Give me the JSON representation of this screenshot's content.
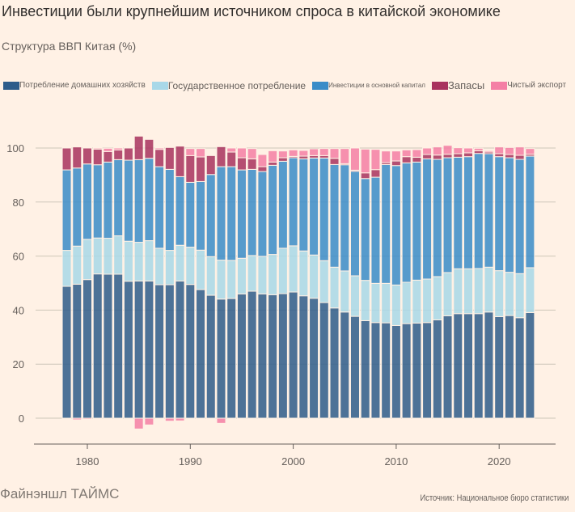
{
  "title": "Инвестиции были крупнейшим источником спроса в китайской экономике",
  "subtitle": "Структура ВВП Китая (%)",
  "footer": {
    "brand": "Файнэншл ТАЙМС",
    "source": "Источник: Национальное бюро статистики"
  },
  "chart_data": {
    "type": "bar",
    "stacked": true,
    "title": "Инвестиции были крупнейшим источником спроса в китайской экономике",
    "subtitle": "Структура ВВП Китая (%)",
    "xlabel": "",
    "ylabel": "",
    "ylim": [
      -10,
      100
    ],
    "yticks": [
      0,
      20,
      40,
      60,
      80,
      100
    ],
    "xticks": [
      1980,
      1990,
      2000,
      2010,
      2020
    ],
    "grid": true,
    "legend_position": "top-left",
    "categories": [
      1978,
      1979,
      1980,
      1981,
      1982,
      1983,
      1984,
      1985,
      1986,
      1987,
      1988,
      1989,
      1990,
      1991,
      1992,
      1993,
      1994,
      1995,
      1996,
      1997,
      1998,
      1999,
      2000,
      2001,
      2002,
      2003,
      2004,
      2005,
      2006,
      2007,
      2008,
      2009,
      2010,
      2011,
      2012,
      2013,
      2014,
      2015,
      2016,
      2017,
      2018,
      2019,
      2020,
      2021,
      2022,
      2023
    ],
    "series": [
      {
        "name": "Потребление домашних хозяйств",
        "color": "#2e5c8a",
        "values": [
          48.8,
          49.6,
          51.3,
          53.4,
          53.3,
          53.3,
          50.7,
          50.8,
          50.8,
          49.4,
          49.4,
          50.8,
          49.5,
          47.6,
          45.5,
          44.1,
          44.3,
          46.0,
          47.0,
          46.0,
          45.7,
          46.1,
          46.7,
          45.3,
          44.4,
          42.8,
          40.8,
          39.3,
          37.7,
          36.1,
          35.4,
          35.3,
          34.3,
          35.0,
          35.2,
          35.4,
          36.4,
          37.9,
          38.7,
          38.7,
          38.7,
          39.3,
          37.6,
          38.0,
          37.2,
          39.1
        ]
      },
      {
        "name": "Государственное потребление",
        "color": "#a8d8e8",
        "values": [
          13.3,
          14.1,
          14.9,
          13.3,
          13.3,
          14.2,
          14.8,
          14.3,
          14.9,
          13.5,
          12.7,
          13.2,
          13.8,
          14.6,
          14.3,
          14.4,
          14.1,
          13.2,
          13.2,
          13.9,
          14.9,
          16.8,
          17.1,
          16.6,
          16.0,
          15.5,
          15.1,
          15.2,
          15.0,
          14.9,
          14.5,
          14.6,
          15.0,
          15.3,
          15.9,
          16.1,
          16.0,
          16.0,
          16.6,
          16.6,
          16.7,
          16.6,
          17.0,
          16.0,
          16.3,
          16.6
        ]
      },
      {
        "name": "Инвестиции в основной капитал",
        "color": "#3a8cc8",
        "values": [
          29.8,
          28.9,
          27.9,
          27.1,
          28.2,
          28.2,
          30.0,
          30.6,
          30.5,
          30.2,
          30.0,
          25.4,
          24.0,
          25.4,
          30.4,
          34.6,
          34.7,
          32.7,
          31.9,
          31.4,
          33.0,
          32.2,
          32.6,
          34.1,
          35.9,
          38.0,
          38.0,
          39.3,
          38.7,
          37.7,
          39.3,
          44.0,
          44.2,
          44.2,
          43.7,
          44.5,
          43.4,
          42.5,
          41.3,
          41.5,
          42.6,
          42.0,
          42.2,
          42.4,
          42.3,
          41.3
        ]
      },
      {
        "name": "Запасы",
        "color": "#a8325e",
        "values": [
          8.1,
          7.8,
          5.9,
          5.8,
          3.9,
          3.6,
          4.5,
          8.7,
          7.0,
          6.4,
          8.1,
          11.3,
          9.9,
          9.1,
          7.0,
          7.4,
          5.4,
          4.5,
          3.9,
          1.8,
          1.2,
          1.3,
          0.5,
          1.0,
          0.9,
          0.9,
          2.3,
          0.4,
          0.4,
          2.1,
          2.8,
          0.7,
          1.7,
          2.3,
          1.8,
          1.6,
          1.6,
          1.3,
          1.3,
          1.4,
          1.0,
          0.6,
          1.1,
          1.2,
          1.5,
          0.7
        ]
      },
      {
        "name": "Чистый экспорт",
        "color": "#f47fa5",
        "values": [
          -0.3,
          -0.6,
          -0.4,
          0.4,
          1.2,
          0.7,
          0.0,
          -4.0,
          -2.5,
          0.5,
          -1.1,
          -1.0,
          2.6,
          3.1,
          0.0,
          -1.9,
          1.5,
          3.6,
          3.8,
          4.5,
          4.2,
          2.5,
          2.4,
          2.1,
          2.5,
          2.6,
          3.6,
          5.6,
          8.2,
          8.8,
          7.5,
          4.3,
          3.7,
          2.5,
          2.8,
          2.4,
          3.0,
          3.3,
          2.2,
          1.8,
          0.9,
          0.5,
          2.5,
          2.6,
          3.1,
          2.1
        ]
      }
    ]
  }
}
